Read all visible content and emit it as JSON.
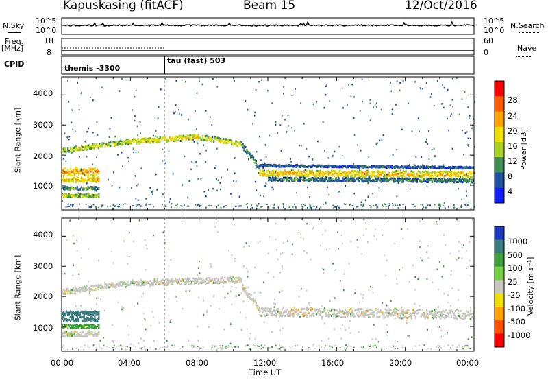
{
  "header": {
    "station": "Kapuskasing (fitACF)",
    "beam": "Beam 15",
    "date": "12/Oct/2016"
  },
  "panels": {
    "nsky_label": "N.Sky",
    "nsky_ticks": [
      "10^5",
      "10^0"
    ],
    "nsearch_label": "N.Search",
    "nsearch_ticks": [
      "10^5",
      "10^0"
    ],
    "freq_label": "Freq.",
    "freq_unit": "[MHz]",
    "freq_ticks": [
      "18",
      "8"
    ],
    "nave_label": "Nave",
    "nave_ticks": [
      "60",
      "0"
    ],
    "cpid_label": "CPID",
    "cpid_segments": [
      "themis -3300",
      "tau (fast) 503"
    ]
  },
  "x_axis": {
    "label": "Time UT",
    "ticks": [
      "00:00",
      "04:00",
      "08:00",
      "12:00",
      "16:00",
      "20:00",
      "00:00"
    ]
  },
  "power_colorbar": {
    "label": "Power [dB]",
    "ticks": [
      "28",
      "24",
      "20",
      "16",
      "12",
      "8",
      "4"
    ],
    "colors": [
      "#ff0000",
      "#ff5a00",
      "#ffa000",
      "#f0e000",
      "#a8d020",
      "#3c8c50",
      "#2050a0",
      "#1020ff"
    ]
  },
  "velocity_colorbar": {
    "label": "Velocity [m s⁻¹]",
    "ticks": [
      "1000",
      "500",
      "100",
      "25",
      "-25",
      "-100",
      "-500",
      "-1000"
    ],
    "colors": [
      "#1838c0",
      "#3a7a80",
      "#3ca03c",
      "#70d040",
      "#c8c8c0",
      "#f0e000",
      "#ffa000",
      "#ff5000",
      "#ff0000"
    ]
  },
  "y_axis": {
    "label": "Slant Range [km]",
    "ticks": [
      "4000",
      "3000",
      "2000",
      "1000"
    ]
  },
  "chart_data": [
    {
      "type": "heatmap",
      "title": "Power",
      "xlabel": "Time UT",
      "ylabel": "Slant Range [km]",
      "xlim": [
        0,
        24
      ],
      "ylim": [
        180,
        4600
      ],
      "colorbar": "Power [dB]",
      "bands": [
        {
          "x": [
            0.0,
            2.2
          ],
          "y_center": [
            1450,
            1450
          ],
          "width": 260,
          "power": 24
        },
        {
          "x": [
            0.0,
            2.2
          ],
          "y_center": [
            1180,
            1180
          ],
          "width": 160,
          "power": 22
        },
        {
          "x": [
            0.0,
            2.2
          ],
          "y_center": [
            900,
            900
          ],
          "width": 90,
          "power": 14
        },
        {
          "x": [
            0.0,
            2.2
          ],
          "y_center": [
            650,
            650
          ],
          "width": 80,
          "power": 18
        },
        {
          "x": [
            0.0,
            4.0
          ],
          "y_center": [
            2150,
            2450
          ],
          "width": 150,
          "power": 18
        },
        {
          "x": [
            4.0,
            8.0
          ],
          "y_center": [
            2450,
            2600
          ],
          "width": 170,
          "power": 20
        },
        {
          "x": [
            8.0,
            10.5
          ],
          "y_center": [
            2600,
            2350
          ],
          "width": 170,
          "power": 18
        },
        {
          "x": [
            10.5,
            11.5
          ],
          "y_center": [
            2300,
            1550
          ],
          "width": 180,
          "power": 12
        },
        {
          "x": [
            11.5,
            24.0
          ],
          "y_center": [
            1650,
            1580
          ],
          "width": 60,
          "power": 10
        },
        {
          "x": [
            11.5,
            24.0
          ],
          "y_center": [
            1400,
            1350
          ],
          "width": 200,
          "power": 22
        },
        {
          "x": [
            12.0,
            24.0
          ],
          "y_center": [
            1200,
            1150
          ],
          "width": 120,
          "power": 12
        }
      ]
    },
    {
      "type": "heatmap",
      "title": "Velocity",
      "xlabel": "Time UT",
      "ylabel": "Slant Range [km]",
      "xlim": [
        0,
        24
      ],
      "ylim": [
        180,
        4600
      ],
      "colorbar": "Velocity [m s⁻¹]",
      "bands": [
        {
          "x": [
            0.0,
            4.0
          ],
          "y_center": [
            2150,
            2450
          ],
          "width": 170,
          "velocity": 0
        },
        {
          "x": [
            4.0,
            10.5
          ],
          "y_center": [
            2450,
            2550
          ],
          "width": 200,
          "velocity": 0
        },
        {
          "x": [
            10.5,
            11.5
          ],
          "y_center": [
            2300,
            1550
          ],
          "width": 180,
          "velocity": 0
        },
        {
          "x": [
            11.5,
            24.0
          ],
          "y_center": [
            1500,
            1380
          ],
          "width": 300,
          "velocity": 0
        },
        {
          "x": [
            0.0,
            2.2
          ],
          "y_center": [
            1450,
            1450
          ],
          "width": 120,
          "velocity": 500
        },
        {
          "x": [
            0.0,
            2.2
          ],
          "y_center": [
            1250,
            1250
          ],
          "width": 180,
          "velocity": 500
        },
        {
          "x": [
            0.0,
            2.2
          ],
          "y_center": [
            1000,
            1000
          ],
          "width": 120,
          "velocity": 100
        },
        {
          "x": [
            0.0,
            2.2
          ],
          "y_center": [
            750,
            750
          ],
          "width": 150,
          "velocity": 0
        }
      ]
    }
  ]
}
